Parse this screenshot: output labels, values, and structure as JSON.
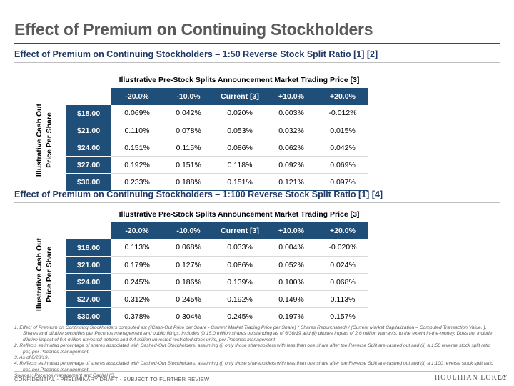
{
  "page": {
    "title": "Effect of Premium on Continuing Stockholders",
    "confidential": "CONFIDENTIAL - PRELIMINARY DRAFT - SUBJECT TO FURTHER REVIEW",
    "logo": "HOULIHAN LOKEY",
    "page_number": "16"
  },
  "colors": {
    "header_fill": "#1f4e79",
    "title_text": "#5a5a5a",
    "section_text": "#1f3864"
  },
  "table_1": {
    "heading": "Effect of Premium on Continuing Stockholders – 1:50 Reverse Stock Split Ratio [1] [2]",
    "caption": "Illustrative Pre-Stock Splits Announcement Market Trading Price [3]",
    "y_axis_label": "Illustrative Cash Out Price Per Share",
    "columns": [
      "-20.0%",
      "-10.0%",
      "Current [3]",
      "+10.0%",
      "+20.0%"
    ],
    "rows": [
      {
        "price": "$18.00",
        "values": [
          "0.069%",
          "0.042%",
          "0.020%",
          "0.003%",
          "-0.012%"
        ]
      },
      {
        "price": "$21.00",
        "values": [
          "0.110%",
          "0.078%",
          "0.053%",
          "0.032%",
          "0.015%"
        ]
      },
      {
        "price": "$24.00",
        "values": [
          "0.151%",
          "0.115%",
          "0.086%",
          "0.062%",
          "0.042%"
        ]
      },
      {
        "price": "$27.00",
        "values": [
          "0.192%",
          "0.151%",
          "0.118%",
          "0.092%",
          "0.069%"
        ]
      },
      {
        "price": "$30.00",
        "values": [
          "0.233%",
          "0.188%",
          "0.151%",
          "0.121%",
          "0.097%"
        ]
      }
    ]
  },
  "table_2": {
    "heading": "Effect of Premium on Continuing Stockholders – 1:100 Reverse Stock Split Ratio [1] [4]",
    "caption": "Illustrative Pre-Stock Splits Announcement Market Trading Price [3]",
    "y_axis_label": "Illustrative Cash Out Price Per Share",
    "columns": [
      "-20.0%",
      "-10.0%",
      "Current [3]",
      "+10.0%",
      "+20.0%"
    ],
    "rows": [
      {
        "price": "$18.00",
        "values": [
          "0.113%",
          "0.068%",
          "0.033%",
          "0.004%",
          "-0.020%"
        ]
      },
      {
        "price": "$21.00",
        "values": [
          "0.179%",
          "0.127%",
          "0.086%",
          "0.052%",
          "0.024%"
        ]
      },
      {
        "price": "$24.00",
        "values": [
          "0.245%",
          "0.186%",
          "0.139%",
          "0.100%",
          "0.068%"
        ]
      },
      {
        "price": "$27.00",
        "values": [
          "0.312%",
          "0.245%",
          "0.192%",
          "0.149%",
          "0.113%"
        ]
      },
      {
        "price": "$30.00",
        "values": [
          "0.378%",
          "0.304%",
          "0.245%",
          "0.197%",
          "0.157%"
        ]
      }
    ]
  },
  "footnotes": [
    "1.  Effect of Premium on Continuing Stockholders computed as: ((Cash-Out Price per Share - Current Market Trading Price per Share) * Shares Repurchased) / (Current Market Capitalization – Computed Transaction Value. ). Shares and dilutive securities per Poconos management and public filings. Includes (i) 15.0 million shares outstanding as of 6/30/19 and (ii) dilutive impact of 2.6 million warrants, to the extent in-the-money. Does not include dilutive impact of 0.4 million unvested options and 0.4 million unvested restricted stock units, per Poconos management",
    "2.  Reflects estimated percentage of shares associated with Cashed-Out Stockholders, assuming (i) only those shareholders with less than one share after the Reverse Split are cashed out and (ii) a 1:50 reverse stock split ratio per, per Poconos management.",
    "3.  As of 8/28/19.",
    "4.  Reflects estimated percentage of shares associated with Cashed-Out Stockholders, assuming (i) only those shareholders with less than one share after the Reverse Split are cashed out and (ii) a 1:100 reverse stock split ratio per, per Poconos management.",
    "Sources: Poconos management and Capital IQ."
  ]
}
